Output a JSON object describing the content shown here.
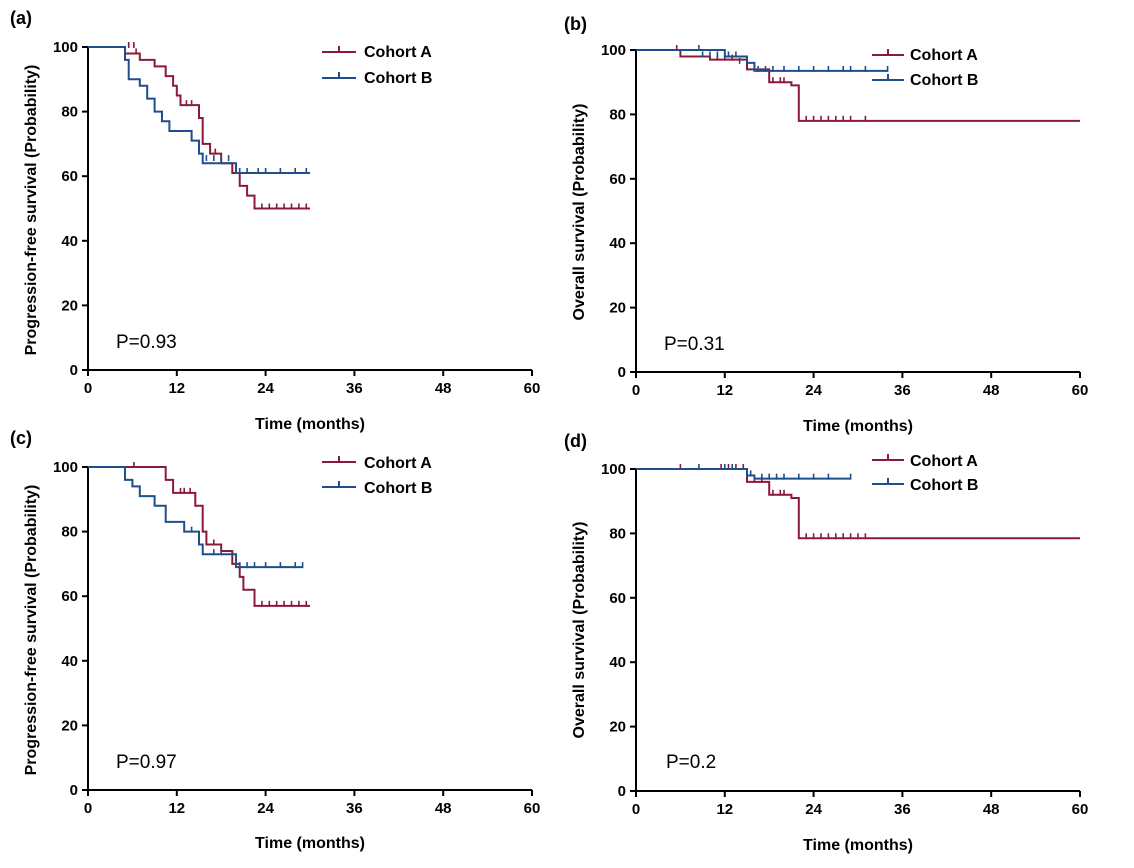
{
  "colors": {
    "cohort_a": "#8b1a3a",
    "cohort_b": "#1f4e8c",
    "axis": "#000000"
  },
  "chart_data": [
    {
      "type": "line",
      "panel": "(a)",
      "ylabel": "Progression-free survival (Probability)",
      "xlabel": "Time (months)",
      "xlim": [
        0,
        60
      ],
      "ylim": [
        0,
        100
      ],
      "xticks": [
        "0",
        "12",
        "24",
        "36",
        "48",
        "60"
      ],
      "yticks": [
        "0",
        "20",
        "40",
        "60",
        "80",
        "100"
      ],
      "pvalue": "P=0.93",
      "legend": [
        "Cohort A",
        "Cohort B"
      ],
      "series": [
        {
          "name": "Cohort A",
          "steps": [
            [
              0,
              100
            ],
            [
              5,
              98
            ],
            [
              7,
              96
            ],
            [
              9,
              94
            ],
            [
              10.5,
              91
            ],
            [
              11.5,
              88
            ],
            [
              12,
              85
            ],
            [
              12.5,
              82
            ],
            [
              15,
              78
            ],
            [
              15.5,
              70
            ],
            [
              16.5,
              67
            ],
            [
              18,
              64
            ],
            [
              19.5,
              61
            ],
            [
              20.5,
              57
            ],
            [
              21.5,
              54
            ],
            [
              22.5,
              50
            ],
            [
              30,
              50
            ]
          ],
          "censors": [
            [
              5.5,
              100
            ],
            [
              6.2,
              100
            ],
            [
              6.5,
              98
            ],
            [
              13.3,
              82
            ],
            [
              14,
              82
            ],
            [
              17.2,
              67
            ],
            [
              23.5,
              50
            ],
            [
              24.5,
              50
            ],
            [
              25.5,
              50
            ],
            [
              26.5,
              50
            ],
            [
              27.5,
              50
            ],
            [
              28.5,
              50
            ],
            [
              29.5,
              50
            ]
          ]
        },
        {
          "name": "Cohort B",
          "steps": [
            [
              0,
              100
            ],
            [
              5,
              96
            ],
            [
              5.5,
              90
            ],
            [
              7,
              88
            ],
            [
              8,
              84
            ],
            [
              9,
              80
            ],
            [
              10,
              77
            ],
            [
              11,
              74
            ],
            [
              14,
              71
            ],
            [
              15,
              67
            ],
            [
              15.5,
              64
            ],
            [
              20,
              61
            ],
            [
              30,
              61
            ]
          ],
          "censors": [
            [
              16,
              65
            ],
            [
              17,
              65
            ],
            [
              18,
              65
            ],
            [
              19,
              65
            ],
            [
              20.5,
              61
            ],
            [
              21.5,
              61
            ],
            [
              23,
              61
            ],
            [
              24,
              61
            ],
            [
              26,
              61
            ],
            [
              28,
              61
            ],
            [
              29.5,
              61
            ]
          ]
        }
      ]
    },
    {
      "type": "line",
      "panel": "(b)",
      "ylabel": "Overall survival (Probability)",
      "xlabel": "Time (months)",
      "xlim": [
        0,
        60
      ],
      "ylim": [
        0,
        100
      ],
      "xticks": [
        "0",
        "12",
        "24",
        "36",
        "48",
        "60"
      ],
      "yticks": [
        "0",
        "20",
        "40",
        "60",
        "80",
        "100"
      ],
      "pvalue": "P=0.31",
      "legend": [
        "Cohort A",
        "Cohort B"
      ],
      "series": [
        {
          "name": "Cohort A",
          "steps": [
            [
              0,
              100
            ],
            [
              6,
              98
            ],
            [
              10,
              97
            ],
            [
              15,
              94
            ],
            [
              18,
              90
            ],
            [
              21,
              89
            ],
            [
              22,
              78
            ],
            [
              60,
              78
            ]
          ],
          "censors": [
            [
              5.5,
              100
            ],
            [
              11,
              97
            ],
            [
              12,
              97
            ],
            [
              13,
              97
            ],
            [
              16,
              94
            ],
            [
              18.5,
              90
            ],
            [
              19.5,
              90
            ],
            [
              20,
              90
            ],
            [
              23,
              78
            ],
            [
              24,
              78
            ],
            [
              25,
              78
            ],
            [
              26,
              78
            ],
            [
              27,
              78
            ],
            [
              28,
              78
            ],
            [
              29,
              78
            ],
            [
              31,
              78
            ]
          ]
        },
        {
          "name": "Cohort B",
          "steps": [
            [
              0,
              100
            ],
            [
              12,
              98
            ],
            [
              15,
              96
            ],
            [
              16,
              93.5
            ],
            [
              34,
              93.5
            ]
          ],
          "censors": [
            [
              8.5,
              100
            ],
            [
              9,
              98
            ],
            [
              10,
              98
            ],
            [
              11,
              98
            ],
            [
              12.5,
              98
            ],
            [
              13.5,
              98
            ],
            [
              14,
              96
            ],
            [
              16.5,
              93.5
            ],
            [
              17.5,
              93.5
            ],
            [
              18.5,
              93.5
            ],
            [
              20,
              93.5
            ],
            [
              22,
              93.5
            ],
            [
              24,
              93.5
            ],
            [
              26,
              93.5
            ],
            [
              28,
              93.5
            ],
            [
              29,
              93.5
            ],
            [
              31,
              93.5
            ],
            [
              34,
              93.5
            ]
          ]
        }
      ]
    },
    {
      "type": "line",
      "panel": "(c)",
      "ylabel": "Progression-free survival (Probability)",
      "xlabel": "Time (months)",
      "xlim": [
        0,
        60
      ],
      "ylim": [
        0,
        100
      ],
      "xticks": [
        "0",
        "12",
        "24",
        "36",
        "48",
        "60"
      ],
      "yticks": [
        "0",
        "20",
        "40",
        "60",
        "80",
        "100"
      ],
      "pvalue": "P=0.97",
      "legend": [
        "Cohort A",
        "Cohort B"
      ],
      "series": [
        {
          "name": "Cohort A",
          "steps": [
            [
              0,
              100
            ],
            [
              10.5,
              96
            ],
            [
              11.5,
              92
            ],
            [
              14.5,
              88
            ],
            [
              15.5,
              80
            ],
            [
              16,
              76
            ],
            [
              18,
              74
            ],
            [
              19.5,
              70
            ],
            [
              20.5,
              66
            ],
            [
              21,
              62
            ],
            [
              22.5,
              57
            ],
            [
              30,
              57
            ]
          ],
          "censors": [
            [
              6.2,
              100
            ],
            [
              12.5,
              92
            ],
            [
              13,
              92
            ],
            [
              13.8,
              92
            ],
            [
              17,
              76
            ],
            [
              23.5,
              57
            ],
            [
              24.5,
              57
            ],
            [
              25.5,
              57
            ],
            [
              26.5,
              57
            ],
            [
              27.5,
              57
            ],
            [
              28.5,
              57
            ],
            [
              29.5,
              57
            ]
          ]
        },
        {
          "name": "Cohort B",
          "steps": [
            [
              0,
              100
            ],
            [
              5,
              96
            ],
            [
              6,
              94
            ],
            [
              7,
              91
            ],
            [
              9,
              88
            ],
            [
              10.5,
              83
            ],
            [
              13,
              80
            ],
            [
              15,
              76
            ],
            [
              15.5,
              73
            ],
            [
              20,
              69
            ],
            [
              29,
              69
            ]
          ],
          "censors": [
            [
              14,
              80
            ],
            [
              17,
              73
            ],
            [
              18,
              73
            ],
            [
              20.5,
              69
            ],
            [
              21.5,
              69
            ],
            [
              22.5,
              69
            ],
            [
              24,
              69
            ],
            [
              26,
              69
            ],
            [
              28,
              69
            ],
            [
              29,
              69
            ]
          ]
        }
      ]
    },
    {
      "type": "line",
      "panel": "(d)",
      "ylabel": "Overall survival (Probability)",
      "xlabel": "Time (months)",
      "xlim": [
        0,
        60
      ],
      "ylim": [
        0,
        100
      ],
      "xticks": [
        "0",
        "12",
        "24",
        "36",
        "48",
        "60"
      ],
      "yticks": [
        "0",
        "20",
        "40",
        "60",
        "80",
        "100"
      ],
      "pvalue": "P=0.2",
      "legend": [
        "Cohort A",
        "Cohort B"
      ],
      "series": [
        {
          "name": "Cohort A",
          "steps": [
            [
              0,
              100
            ],
            [
              15,
              96
            ],
            [
              18,
              92
            ],
            [
              21,
              91
            ],
            [
              22,
              78.5
            ],
            [
              60,
              78.5
            ]
          ],
          "censors": [
            [
              6,
              100
            ],
            [
              11.5,
              100
            ],
            [
              12.5,
              100
            ],
            [
              13.5,
              100
            ],
            [
              14.5,
              100
            ],
            [
              16,
              96
            ],
            [
              17,
              96
            ],
            [
              18.5,
              92
            ],
            [
              19.5,
              92
            ],
            [
              20,
              92
            ],
            [
              23,
              78.5
            ],
            [
              24,
              78.5
            ],
            [
              25,
              78.5
            ],
            [
              26,
              78.5
            ],
            [
              27,
              78.5
            ],
            [
              28,
              78.5
            ],
            [
              29,
              78.5
            ],
            [
              30,
              78.5
            ],
            [
              31,
              78.5
            ]
          ]
        },
        {
          "name": "Cohort B",
          "steps": [
            [
              0,
              100
            ],
            [
              15,
              98
            ],
            [
              16,
              97
            ],
            [
              29,
              97
            ]
          ],
          "censors": [
            [
              8.5,
              100
            ],
            [
              12,
              100
            ],
            [
              13,
              100
            ],
            [
              15.5,
              98
            ],
            [
              17,
              97
            ],
            [
              18,
              97
            ],
            [
              19,
              97
            ],
            [
              20,
              97
            ],
            [
              22,
              97
            ],
            [
              24,
              97
            ],
            [
              26,
              97
            ],
            [
              29,
              97
            ]
          ]
        }
      ]
    }
  ]
}
